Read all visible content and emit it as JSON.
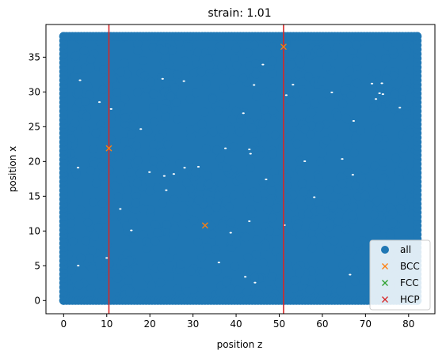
{
  "chart_data": {
    "type": "scatter",
    "title": "strain: 1.01",
    "xlabel": "position z",
    "ylabel": "position x",
    "xlim": [
      -4.1,
      86.1
    ],
    "ylim": [
      -1.9,
      39.7
    ],
    "xticks": [
      0,
      10,
      20,
      30,
      40,
      50,
      60,
      70,
      80
    ],
    "yticks": [
      0,
      5,
      10,
      15,
      20,
      25,
      30,
      35
    ],
    "grid": false,
    "legend_position": "lower-right",
    "all_region": {
      "x_range": [
        0,
        82
      ],
      "y_range": [
        0,
        38
      ]
    },
    "vertical_lines": [
      {
        "x": 10.5,
        "color": "#d62728"
      },
      {
        "x": 51.0,
        "color": "#d62728"
      }
    ],
    "series": [
      {
        "name": "all",
        "marker": "circle",
        "color": "#1f77b4",
        "x": [],
        "y": []
      },
      {
        "name": "BCC",
        "marker": "x",
        "color": "#ff7f0e",
        "x": [
          10.5,
          51.0,
          32.8
        ],
        "y": [
          21.9,
          36.5,
          10.8
        ]
      },
      {
        "name": "FCC",
        "marker": "x",
        "color": "#2ca02c",
        "x": [],
        "y": []
      },
      {
        "name": "HCP",
        "marker": "x",
        "color": "#d62728",
        "x": [],
        "y": []
      }
    ]
  }
}
